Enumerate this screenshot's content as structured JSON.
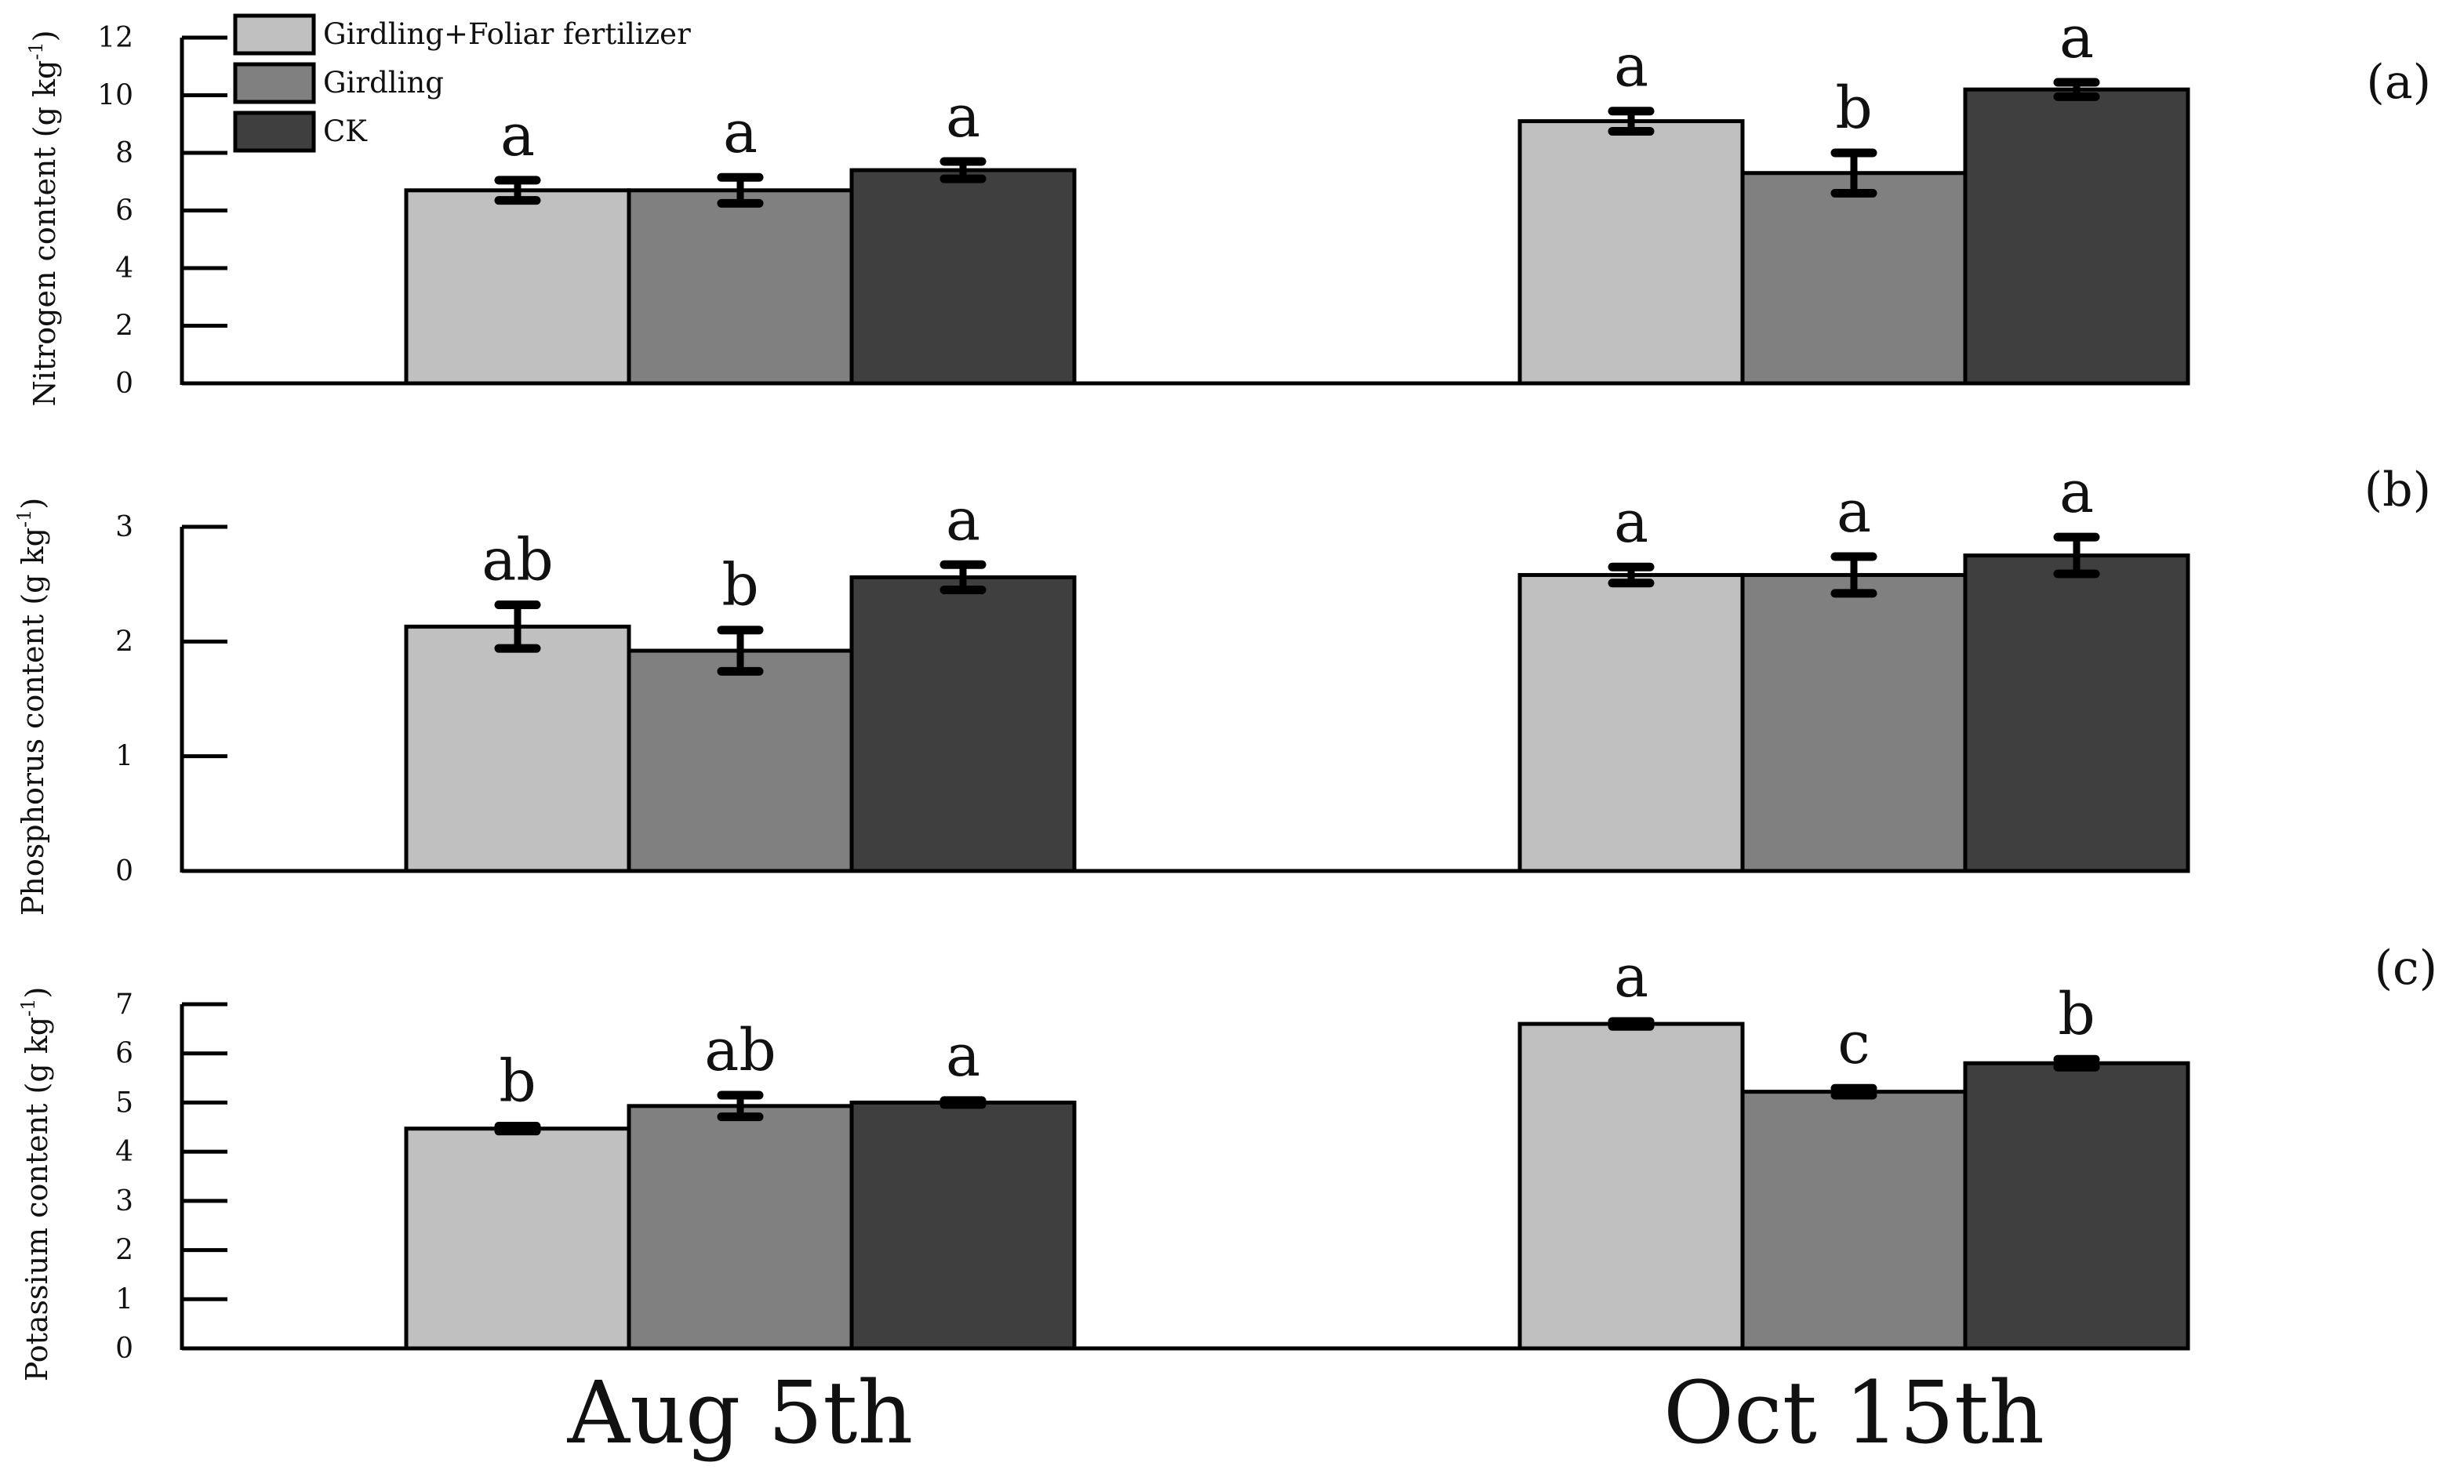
{
  "chart_data": {
    "type": "bar",
    "categories": [
      "Aug 5th",
      "Oct 15th"
    ],
    "legend": {
      "placement": "top-left",
      "entries": [
        "Girdling+Foliar fertilizer",
        "Girdling",
        "CK"
      ]
    },
    "series_colors": [
      "#c0c0c0",
      "#808080",
      "#3f3f3f"
    ],
    "panels": [
      {
        "tag": "(a)",
        "ylabel": "Nitrogen content (g kg",
        "ylabel_sup": "-1",
        "ylabel_end": ")",
        "ylim": [
          0,
          12
        ],
        "yticks": [
          0,
          2,
          4,
          6,
          8,
          10,
          12
        ],
        "series": [
          {
            "name": "Girdling+Foliar fertilizer",
            "values": [
              6.7,
              9.1
            ],
            "errors": [
              0.35,
              0.35
            ],
            "letters": [
              "a",
              "a"
            ]
          },
          {
            "name": "Girdling",
            "values": [
              6.7,
              7.3
            ],
            "errors": [
              0.45,
              0.7
            ],
            "letters": [
              "a",
              "b"
            ]
          },
          {
            "name": "CK",
            "values": [
              7.4,
              10.2
            ],
            "errors": [
              0.3,
              0.25
            ],
            "letters": [
              "a",
              "a"
            ]
          }
        ]
      },
      {
        "tag": "(b)",
        "ylabel": "Phosphorus content (g kg",
        "ylabel_sup": "-1",
        "ylabel_end": ")",
        "ylim": [
          0,
          3
        ],
        "yticks": [
          0,
          1,
          2,
          3
        ],
        "series": [
          {
            "name": "Girdling+Foliar fertilizer",
            "values": [
              2.13,
              2.58
            ],
            "errors": [
              0.19,
              0.07
            ],
            "letters": [
              "ab",
              "a"
            ]
          },
          {
            "name": "Girdling",
            "values": [
              1.92,
              2.58
            ],
            "errors": [
              0.18,
              0.16
            ],
            "letters": [
              "b",
              "a"
            ]
          },
          {
            "name": "CK",
            "values": [
              2.56,
              2.75
            ],
            "errors": [
              0.11,
              0.16
            ],
            "letters": [
              "a",
              "a"
            ]
          }
        ]
      },
      {
        "tag": "(c)",
        "ylabel": "Potassium content (g kg",
        "ylabel_sup": "-1",
        "ylabel_end": ")",
        "ylim": [
          0,
          7
        ],
        "yticks": [
          0,
          1,
          2,
          3,
          4,
          5,
          6,
          7
        ],
        "series": [
          {
            "name": "Girdling+Foliar fertilizer",
            "values": [
              4.47,
              6.6
            ],
            "errors": [
              0.05,
              0.05
            ],
            "letters": [
              "b",
              "a"
            ]
          },
          {
            "name": "Girdling",
            "values": [
              4.93,
              5.22
            ],
            "errors": [
              0.22,
              0.07
            ],
            "letters": [
              "ab",
              "c"
            ]
          },
          {
            "name": "CK",
            "values": [
              5.0,
              5.8
            ],
            "errors": [
              0.04,
              0.08
            ],
            "letters": [
              "a",
              "b"
            ]
          }
        ]
      }
    ]
  }
}
